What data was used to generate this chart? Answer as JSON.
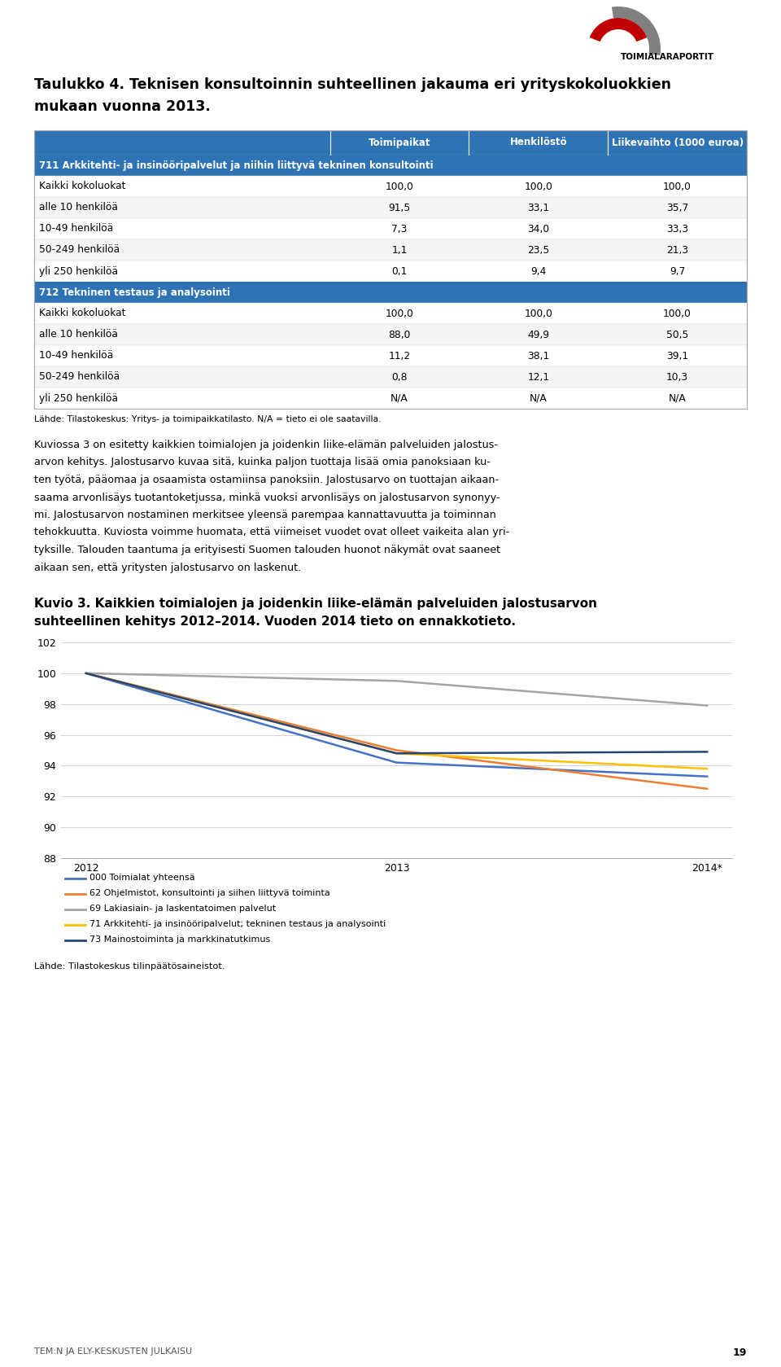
{
  "title_line1": "Taulukko 4. Teknisen konsultoinnin suhteellinen jakauma eri yrityskokoluokkien",
  "title_line2": "mukaan vuonna 2013.",
  "table_header": [
    "",
    "Toimipaikat",
    "Henkilöstö",
    "Liikevaihto (1000 euroa)"
  ],
  "section1_label": "711 Arkkitehti- ja insinööripalvelut ja niihin liittyvä tekninen konsultointi",
  "section2_label": "712 Tekninen testaus ja analysointi",
  "table_data": [
    [
      "Kaikki kokoluokat",
      "100,0",
      "100,0",
      "100,0"
    ],
    [
      "alle 10 henkilöä",
      "91,5",
      "33,1",
      "35,7"
    ],
    [
      "10-49 henkilöä",
      "7,3",
      "34,0",
      "33,3"
    ],
    [
      "50-249 henkilöä",
      "1,1",
      "23,5",
      "21,3"
    ],
    [
      "yli 250 henkilöä",
      "0,1",
      "9,4",
      "9,7"
    ],
    [
      "Kaikki kokoluokat",
      "100,0",
      "100,0",
      "100,0"
    ],
    [
      "alle 10 henkilöä",
      "88,0",
      "49,9",
      "50,5"
    ],
    [
      "10-49 henkilöä",
      "11,2",
      "38,1",
      "39,1"
    ],
    [
      "50-249 henkilöä",
      "0,8",
      "12,1",
      "10,3"
    ],
    [
      "yli 250 henkilöä",
      "N/A",
      "N/A",
      "N/A"
    ]
  ],
  "source_table": "Lähde: Tilastokeskus: Yritys- ja toimipaikkatilasto. N/A = tieto ei ole saatavilla.",
  "body_text_lines": [
    "Kuviossa 3 on esitetty kaikkien toimialojen ja joidenkin liike-elämän palveluiden jalostus-",
    "arvon kehitys. Jalostusarvo kuvaa sitä, kuinka paljon tuottaja lisää omia panoksiaan ku-",
    "ten työtä, pääomaa ja osaamista ostamiinsa panoksiin. Jalostusarvo on tuottajan aikaan-",
    "saama arvonlisäys tuotantoketjussa, minkä vuoksi arvonlisäys on jalostusarvon synonyy-",
    "mi. Jalostusarvon nostaminen merkitsee yleensä parempaa kannattavuutta ja toiminnan",
    "tehokkuutta. Kuviosta voimme huomata, että viimeiset vuodet ovat olleet vaikeita alan yri-",
    "tyksille. Talouden taantuma ja erityisesti Suomen talouden huonot näkymät ovat saaneet",
    "aikaan sen, että yritysten jalostusarvo on laskenut."
  ],
  "chart_title_line1": "Kuvio 3. Kaikkien toimialojen ja joidenkin liike-elämän palveluiden jalostusarvon",
  "chart_title_line2": "suhteellinen kehitys 2012–2014. Vuoden 2014 tieto on ennakkotieto.",
  "x_labels": [
    "2012",
    "2013",
    "2014*"
  ],
  "y_min": 88,
  "y_max": 102,
  "y_ticks": [
    88,
    90,
    92,
    94,
    96,
    98,
    100,
    102
  ],
  "lines": [
    {
      "label": "000 Toimialat yhteensä",
      "color": "#4472C4",
      "values": [
        100.0,
        94.2,
        93.3
      ]
    },
    {
      "label": "62 Ohjelmistot, konsultointi ja siihen liittyvä toiminta",
      "color": "#ED7D31",
      "values": [
        100.0,
        95.0,
        92.5
      ]
    },
    {
      "label": "69 Lakiasiain- ja laskentatoimen palvelut",
      "color": "#A5A5A5",
      "values": [
        100.0,
        99.5,
        97.9
      ]
    },
    {
      "label": "71 Arkkitehti- ja insinööripalvelut; tekninen testaus ja analysointi",
      "color": "#FFC000",
      "values": [
        100.0,
        94.8,
        93.8
      ]
    },
    {
      "label": "73 Mainostoiminta ja markkinatutkimus",
      "color": "#264478",
      "values": [
        100.0,
        94.8,
        94.9
      ]
    }
  ],
  "source_chart": "Lähde: Tilastokeskus tilinpäätösaineistot.",
  "footer": "TEM:N JA ELY-KESKUSTEN JULKAISU",
  "page_num": "19",
  "header_bg_color": "#2E74B5",
  "section_bg_color": "#2E74B5"
}
